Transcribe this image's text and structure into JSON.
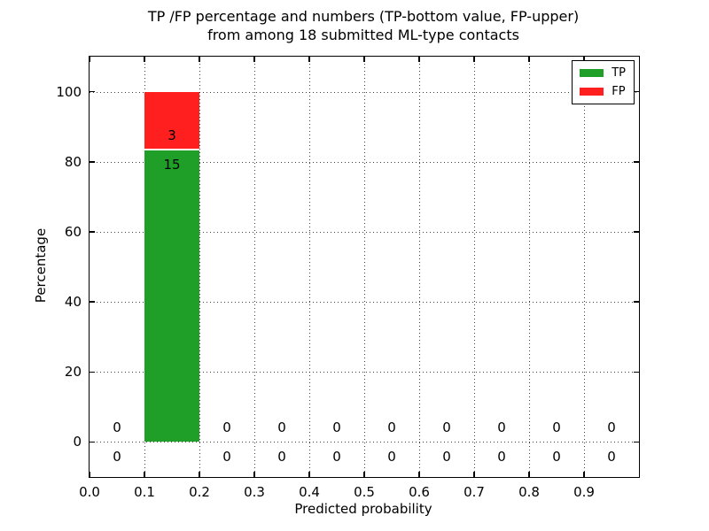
{
  "title": {
    "line1": "TP /FP percentage and numbers (TP-bottom value, FP-upper)",
    "line2": "from among 18 submitted ML-type contacts"
  },
  "axes": {
    "xlabel": "Predicted probability",
    "ylabel": "Percentage",
    "x_tick_labels": [
      "0.0",
      "0.1",
      "0.2",
      "0.3",
      "0.4",
      "0.5",
      "0.6",
      "0.7",
      "0.8",
      "0.9"
    ],
    "x_tick_values": [
      0.0,
      0.1,
      0.2,
      0.3,
      0.4,
      0.5,
      0.6,
      0.7,
      0.8,
      0.9
    ],
    "y_tick_labels": [
      "0",
      "20",
      "40",
      "60",
      "80",
      "100"
    ],
    "y_tick_values": [
      0,
      20,
      40,
      60,
      80,
      100
    ]
  },
  "legend": {
    "position": "upper right",
    "items": [
      {
        "label": "TP",
        "color": "#1f9e28"
      },
      {
        "label": "FP",
        "color": "#ff1f1f"
      }
    ]
  },
  "chart_data": {
    "type": "bar",
    "stacked": true,
    "title": "TP /FP percentage and numbers (TP-bottom value, FP-upper) from among 18 submitted ML-type contacts",
    "xlabel": "Predicted probability",
    "ylabel": "Percentage",
    "total_contacts": 18,
    "bin_centers": [
      0.05,
      0.15,
      0.25,
      0.35,
      0.45,
      0.55,
      0.65,
      0.75,
      0.85,
      0.95
    ],
    "bar_width": 0.1,
    "xlim": [
      0.0,
      1.0
    ],
    "ylim": [
      -10,
      110
    ],
    "grid": true,
    "legend_position": "upper right",
    "series": [
      {
        "name": "TP",
        "color": "#1f9e28",
        "counts": [
          0,
          15,
          0,
          0,
          0,
          0,
          0,
          0,
          0,
          0
        ],
        "percent": [
          0,
          83.33,
          0,
          0,
          0,
          0,
          0,
          0,
          0,
          0
        ]
      },
      {
        "name": "FP",
        "color": "#ff1f1f",
        "counts": [
          0,
          3,
          0,
          0,
          0,
          0,
          0,
          0,
          0,
          0
        ],
        "percent": [
          0,
          16.67,
          0,
          0,
          0,
          0,
          0,
          0,
          0,
          0
        ]
      }
    ]
  },
  "colors": {
    "tp": "#1f9e28",
    "fp": "#ff1f1f",
    "background": "#ffffff",
    "text": "#000000"
  }
}
